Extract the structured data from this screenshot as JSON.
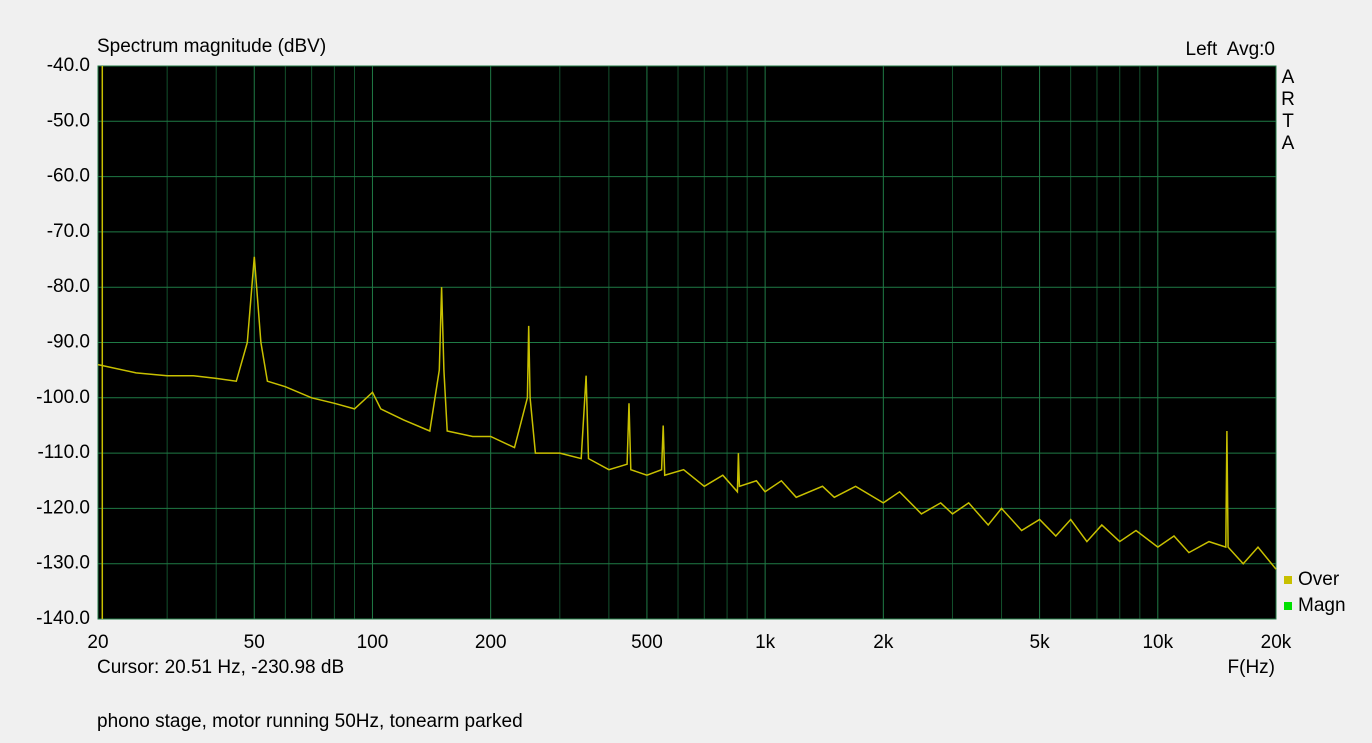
{
  "chart_data": {
    "type": "line",
    "title": "Spectrum magnitude (dBV)",
    "channel_label": "Left  Avg:0",
    "brand": [
      "A",
      "R",
      "T",
      "A"
    ],
    "xlabel": "F(Hz)",
    "cursor": {
      "label": "Cursor: 20.51 Hz, -230.98 dB",
      "x": 20.51
    },
    "note": "phono stage, motor running 50Hz, tonearm parked",
    "log_x": true,
    "grid": true,
    "xlim": [
      20,
      20000
    ],
    "ylim": [
      -140,
      -40
    ],
    "xticks": [
      20,
      50,
      100,
      200,
      500,
      {
        "value": 1000,
        "label": "1k"
      },
      {
        "value": 2000,
        "label": "2k"
      },
      {
        "value": 5000,
        "label": "5k"
      },
      {
        "value": 10000,
        "label": "10k"
      },
      {
        "value": 20000,
        "label": "20k"
      }
    ],
    "xminorticks": [
      30,
      40,
      60,
      70,
      80,
      90,
      300,
      400,
      600,
      700,
      800,
      900,
      3000,
      4000,
      6000,
      7000,
      8000,
      9000
    ],
    "yticks": [
      {
        "value": -40,
        "label": "-40.0"
      },
      {
        "value": -50,
        "label": "-50.0"
      },
      {
        "value": -60,
        "label": "-60.0"
      },
      {
        "value": -70,
        "label": "-70.0"
      },
      {
        "value": -80,
        "label": "-80.0"
      },
      {
        "value": -90,
        "label": "-90.0"
      },
      {
        "value": -100,
        "label": "-100.0"
      },
      {
        "value": -110,
        "label": "-110.0"
      },
      {
        "value": -120,
        "label": "-120.0"
      },
      {
        "value": -130,
        "label": "-130.0"
      },
      {
        "value": -140,
        "label": "-140.0"
      }
    ],
    "x": [
      20,
      25,
      30,
      35,
      40,
      45,
      48,
      50,
      52,
      54,
      60,
      70,
      80,
      90,
      100,
      105,
      120,
      140,
      148,
      150,
      152,
      155,
      180,
      200,
      230,
      248,
      250,
      252,
      260,
      300,
      340,
      350,
      355,
      400,
      445,
      450,
      455,
      500,
      545,
      550,
      555,
      620,
      700,
      780,
      850,
      855,
      860,
      950,
      1000,
      1100,
      1200,
      1400,
      1500,
      1700,
      2000,
      2200,
      2500,
      2800,
      3000,
      3300,
      3700,
      4000,
      4500,
      5000,
      5500,
      6000,
      6600,
      7200,
      8000,
      8800,
      10000,
      11000,
      12000,
      13500,
      14900,
      15000,
      15100,
      16500,
      18000,
      20000
    ],
    "series": [
      {
        "name": "Over",
        "color": "#c8c000",
        "values": [
          -94,
          -95.5,
          -96,
          -96,
          -96.5,
          -97,
          -90,
          -74.5,
          -90,
          -97,
          -98,
          -100,
          -101,
          -102,
          -99,
          -102,
          -104,
          -106,
          -95,
          -80,
          -95,
          -106,
          -107,
          -107,
          -109,
          -100,
          -87,
          -100,
          -110,
          -110,
          -111,
          -96,
          -111,
          -113,
          -112,
          -101,
          -113,
          -114,
          -113,
          -105,
          -114,
          -113,
          -116,
          -114,
          -117,
          -110,
          -116,
          -115,
          -117,
          -115,
          -118,
          -116,
          -118,
          -116,
          -119,
          -117,
          -121,
          -119,
          -121,
          -119,
          -123,
          -120,
          -124,
          -122,
          -125,
          -122,
          -126,
          -123,
          -126,
          -124,
          -127,
          -125,
          -128,
          -126,
          -127,
          -106,
          -127,
          -130,
          -127,
          -131
        ]
      },
      {
        "name": "Magn",
        "color": "#00e000",
        "values": [
          null,
          null,
          null,
          null,
          null,
          null,
          null,
          null,
          null,
          null,
          null,
          null,
          null,
          null,
          null,
          null,
          null,
          null,
          null,
          null,
          null,
          null,
          null,
          null,
          null,
          null,
          null,
          null,
          null,
          null,
          null,
          null,
          null,
          null,
          null,
          null,
          null,
          null,
          null,
          null,
          null,
          null,
          null,
          null,
          null,
          null,
          null,
          null,
          null,
          null,
          null,
          null,
          null,
          null,
          null,
          null,
          null,
          null,
          null,
          null,
          null,
          null,
          null,
          null,
          null,
          null,
          null,
          null,
          null,
          null,
          null,
          null,
          null,
          null,
          null,
          null,
          null,
          null,
          null,
          null
        ]
      }
    ]
  }
}
